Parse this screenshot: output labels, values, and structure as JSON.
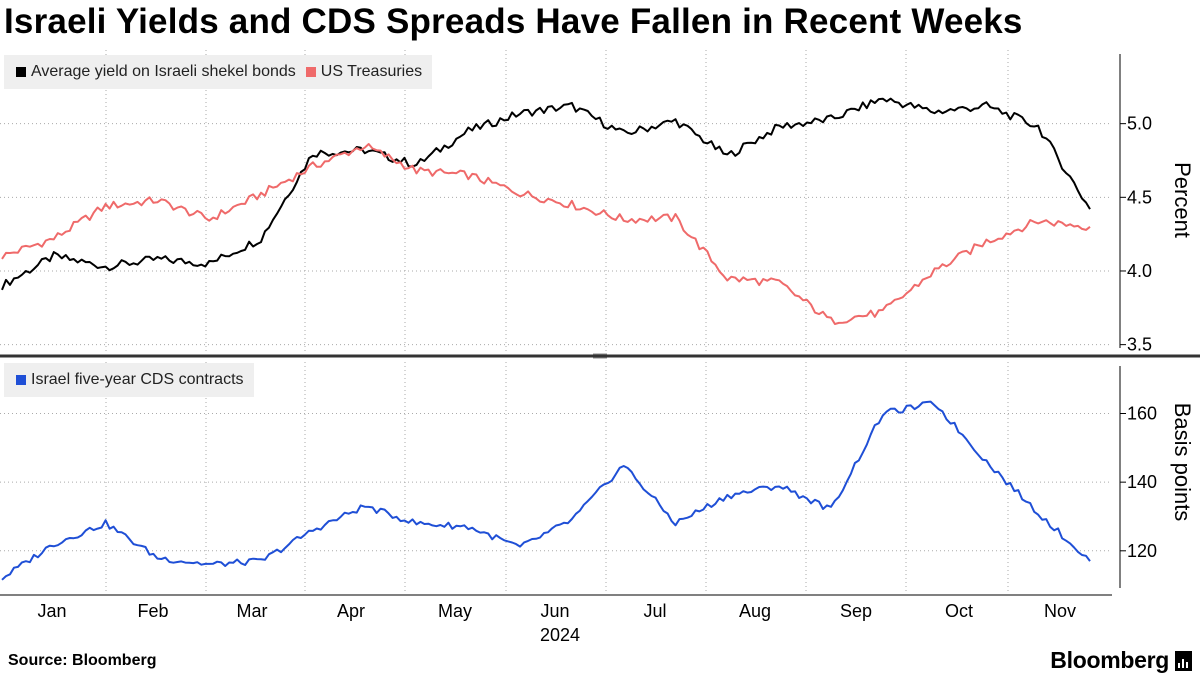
{
  "title": "Israeli Yields and CDS Spreads Have Fallen in Recent Weeks",
  "source": "Source: Bloomberg",
  "brand": "Bloomberg",
  "colors": {
    "israel_yield": "#000000",
    "us_treasuries": "#ef6a6a",
    "cds": "#1f4fd6",
    "grid": "#aaaaaa",
    "divider": "#333333"
  },
  "legend_top": [
    {
      "label": "Average yield on Israeli shekel bonds",
      "color": "#000000"
    },
    {
      "label": "US Treasuries",
      "color": "#ef6a6a"
    }
  ],
  "legend_bottom": [
    {
      "label": "Israel five-year CDS contracts",
      "color": "#1f4fd6"
    }
  ],
  "chart_data": [
    {
      "type": "line",
      "panel": "top",
      "title": "",
      "ylabel": "Percent",
      "ylim": [
        3.45,
        5.5
      ],
      "yticks": [
        "3.5",
        "4.0",
        "4.5",
        "5.0"
      ],
      "x": [
        "Jan 1",
        "Jan 15",
        "Feb 1",
        "Feb 15",
        "Mar 1",
        "Mar 15",
        "Apr 1",
        "Apr 15",
        "May 1",
        "May 15",
        "Jun 1",
        "Jun 15",
        "Jul 1",
        "Jul 15",
        "Aug 1",
        "Aug 15",
        "Sep 1",
        "Sep 15",
        "Oct 1",
        "Oct 15",
        "Nov 1",
        "Nov 15"
      ],
      "series": [
        {
          "name": "Average yield on Israeli shekel bonds",
          "values": [
            3.9,
            4.1,
            4.03,
            4.08,
            4.05,
            4.22,
            4.8,
            4.82,
            4.72,
            4.95,
            5.07,
            5.12,
            4.93,
            5.02,
            4.78,
            4.98,
            5.03,
            5.17,
            5.08,
            5.12,
            4.98,
            4.42
          ]
        },
        {
          "name": "US Treasuries",
          "values": [
            4.1,
            4.22,
            4.44,
            4.48,
            4.35,
            4.52,
            4.71,
            4.85,
            4.68,
            4.65,
            4.53,
            4.45,
            4.35,
            4.36,
            3.95,
            3.92,
            3.66,
            3.72,
            4.0,
            4.2,
            4.34,
            4.3
          ]
        }
      ]
    },
    {
      "type": "line",
      "panel": "bottom",
      "title": "",
      "ylabel": "Basis points",
      "ylim": [
        108,
        175
      ],
      "yticks": [
        "120",
        "140",
        "160"
      ],
      "x": [
        "Jan 1",
        "Jan 15",
        "Feb 1",
        "Feb 15",
        "Mar 1",
        "Mar 15",
        "Apr 1",
        "Apr 15",
        "May 1",
        "May 15",
        "Jun 1",
        "Jun 15",
        "Jul 1",
        "Jul 15",
        "Aug 1",
        "Aug 15",
        "Sep 1",
        "Sep 15",
        "Oct 1",
        "Oct 15",
        "Nov 1",
        "Nov 15"
      ],
      "series": [
        {
          "name": "Israel five-year CDS contracts",
          "values": [
            112,
            122,
            128,
            118,
            116,
            117,
            126,
            133,
            128,
            127,
            121,
            129,
            145,
            128,
            136,
            139,
            132,
            160,
            163,
            146,
            131,
            117
          ]
        }
      ]
    }
  ],
  "x_axis": {
    "months": [
      "Jan",
      "Feb",
      "Mar",
      "Apr",
      "May",
      "Jun",
      "Jul",
      "Aug",
      "Sep",
      "Oct",
      "Nov"
    ],
    "year": "2024"
  }
}
